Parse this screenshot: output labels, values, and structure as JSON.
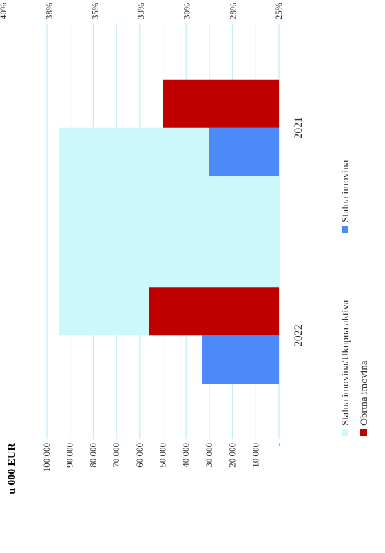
{
  "chart_data": {
    "type": "bar",
    "orientation": "rotated-90-ccw",
    "unit_label": "u 000  EUR",
    "categories": [
      "2022",
      "2021"
    ],
    "series": [
      {
        "name": "Stalna imovina",
        "axis": "left",
        "color": "#4c8afa",
        "values": [
          33000,
          30000
        ]
      },
      {
        "name": "Obrtna imovina",
        "axis": "left",
        "color": "#c00000",
        "values": [
          56000,
          50000
        ]
      },
      {
        "name": "Stalna imovina/Ukupna aktiva",
        "axis": "right",
        "type": "area",
        "color": "#ccf8fb",
        "values": [
          0.37,
          0.37
        ]
      }
    ],
    "left_axis": {
      "ylim": [
        0,
        100000
      ],
      "tick_labels": [
        "-",
        "10 000",
        "20 000",
        "30 000",
        "40 000",
        "50 000",
        "60 000",
        "70 000",
        "80 000",
        "90 000",
        "100 000"
      ]
    },
    "right_axis": {
      "ylim": [
        0.25,
        0.4
      ],
      "tick_labels": [
        "25%",
        "28%",
        "30%",
        "33%",
        "35%",
        "38%",
        "40%"
      ]
    },
    "grid": true,
    "legend": {
      "position": "bottom",
      "entries": [
        {
          "label": "Stalna imovina/Ukupna aktiva",
          "color": "#ccf8fb"
        },
        {
          "label": "Stalna imovina",
          "color": "#4c8afa"
        },
        {
          "label": "Obrtna imovina",
          "color": "#c00000"
        }
      ]
    }
  }
}
